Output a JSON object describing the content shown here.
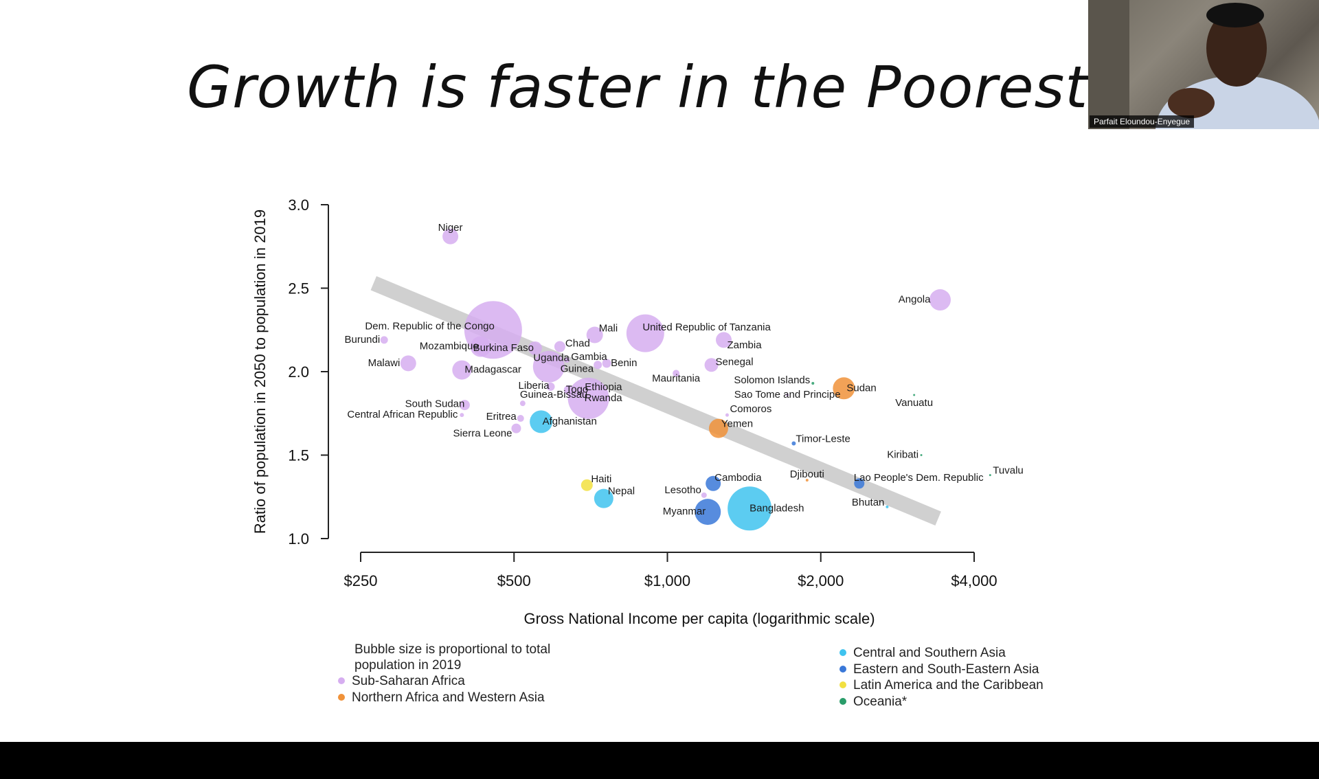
{
  "slide": {
    "title": "Growth is faster in the Poorest Nation",
    "presenter": "Parfait Eloundou-Enyegue"
  },
  "colors": {
    "background": "#ffffff",
    "trend": "#c8c8c8",
    "bottom_bar": "#000000"
  },
  "chart_data": {
    "type": "scatter",
    "xlabel": "Gross National Income per capita (logarithmic scale)",
    "ylabel": "Ratio of population in 2050 to population in 2019",
    "x_scale": "log2",
    "xlim": [
      250,
      4000
    ],
    "ylim": [
      1.0,
      3.0
    ],
    "x_ticks": [
      {
        "value": 250,
        "label": "$250"
      },
      {
        "value": 500,
        "label": "$500"
      },
      {
        "value": 1000,
        "label": "$1,000"
      },
      {
        "value": 2000,
        "label": "$2,000"
      },
      {
        "value": 4000,
        "label": "$4,000"
      }
    ],
    "y_ticks": [
      {
        "value": 1.0,
        "label": "1.0"
      },
      {
        "value": 1.5,
        "label": "1.5"
      },
      {
        "value": 2.0,
        "label": "2.0"
      },
      {
        "value": 2.5,
        "label": "2.5"
      },
      {
        "value": 3.0,
        "label": "3.0"
      }
    ],
    "trend_line": {
      "x": [
        265,
        3400
      ],
      "y": [
        2.53,
        1.12
      ]
    },
    "bubble_note": "Bubble size is proportional to total population in 2019",
    "legend": [
      {
        "name": "Sub-Saharan Africa",
        "key": "ssa",
        "color": "#d6aef0",
        "column": 0
      },
      {
        "name": "Northern Africa and Western Asia",
        "key": "nawa",
        "color": "#f0923a",
        "column": 0
      },
      {
        "name": "Central and Southern Asia",
        "key": "csa",
        "color": "#3fc3ef",
        "column": 1
      },
      {
        "name": "Eastern and South-Eastern Asia",
        "key": "esea",
        "color": "#3a78d8",
        "column": 1
      },
      {
        "name": "Latin America and the Caribbean",
        "key": "lac",
        "color": "#f2e040",
        "column": 1
      },
      {
        "name": "Oceania*",
        "key": "oce",
        "color": "#2a9d6a",
        "column": 1
      }
    ],
    "points": [
      {
        "name": "Niger",
        "x": 375,
        "y": 2.81,
        "size": 23,
        "region": "ssa",
        "anchor": "middle",
        "dx": 0,
        "dy": -8
      },
      {
        "name": "Angola",
        "x": 3430,
        "y": 2.43,
        "size": 31,
        "region": "ssa",
        "anchor": "end",
        "dx": -14,
        "dy": 4
      },
      {
        "name": "Dem. Republic of the Congo",
        "x": 455,
        "y": 2.25,
        "size": 84,
        "region": "ssa",
        "anchor": "end",
        "dx": 2,
        "dy": -1
      },
      {
        "name": "Burundi",
        "x": 278,
        "y": 2.19,
        "size": 11,
        "region": "ssa",
        "anchor": "end",
        "dx": -6,
        "dy": 4
      },
      {
        "name": "Mozambique",
        "x": 430,
        "y": 2.15,
        "size": 30,
        "region": "ssa",
        "anchor": "end",
        "dx": -3,
        "dy": 4
      },
      {
        "name": "Burkina Faso",
        "x": 550,
        "y": 2.14,
        "size": 20,
        "region": "ssa",
        "anchor": "end",
        "dx": -2,
        "dy": 4
      },
      {
        "name": "Chad",
        "x": 615,
        "y": 2.15,
        "size": 16,
        "region": "ssa",
        "anchor": "start",
        "dx": 8,
        "dy": 0
      },
      {
        "name": "Malawi",
        "x": 310,
        "y": 2.05,
        "size": 23,
        "region": "ssa",
        "anchor": "end",
        "dx": -12,
        "dy": 4
      },
      {
        "name": "Madagascar",
        "x": 395,
        "y": 2.01,
        "size": 28,
        "region": "ssa",
        "anchor": "start",
        "dx": 4,
        "dy": 4
      },
      {
        "name": "Uganda",
        "x": 585,
        "y": 2.03,
        "size": 46,
        "region": "ssa",
        "anchor": "end",
        "dx": 30,
        "dy": -8
      },
      {
        "name": "Gambia",
        "x": 635,
        "y": 2.07,
        "size": 8,
        "region": "ssa",
        "anchor": "start",
        "dx": 6,
        "dy": 0
      },
      {
        "name": "Guinea",
        "x": 730,
        "y": 2.04,
        "size": 12,
        "region": "ssa",
        "anchor": "end",
        "dx": -6,
        "dy": 10
      },
      {
        "name": "Benin",
        "x": 760,
        "y": 2.05,
        "size": 13,
        "region": "ssa",
        "anchor": "start",
        "dx": 6,
        "dy": 4
      },
      {
        "name": "Mali",
        "x": 720,
        "y": 2.22,
        "size": 24,
        "region": "ssa",
        "anchor": "start",
        "dx": 6,
        "dy": -5
      },
      {
        "name": "United Republic of Tanzania",
        "x": 905,
        "y": 2.23,
        "size": 55,
        "region": "ssa",
        "anchor": "start",
        "dx": -4,
        "dy": -4
      },
      {
        "name": "Zambia",
        "x": 1290,
        "y": 2.19,
        "size": 23,
        "region": "ssa",
        "anchor": "start",
        "dx": 5,
        "dy": 12
      },
      {
        "name": "Senegal",
        "x": 1220,
        "y": 2.04,
        "size": 20,
        "region": "ssa",
        "anchor": "start",
        "dx": 6,
        "dy": 0
      },
      {
        "name": "Mauritania",
        "x": 1040,
        "y": 1.99,
        "size": 10,
        "region": "ssa",
        "anchor": "middle",
        "dx": 0,
        "dy": 12
      },
      {
        "name": "Liberia",
        "x": 590,
        "y": 1.91,
        "size": 12,
        "region": "ssa",
        "anchor": "end",
        "dx": -2,
        "dy": 3
      },
      {
        "name": "Togo",
        "x": 640,
        "y": 1.89,
        "size": 14,
        "region": "ssa",
        "anchor": "start",
        "dx": -4,
        "dy": 4
      },
      {
        "name": "Ethiopia",
        "x": 680,
        "y": 1.88,
        "size": 6,
        "region": "ssa",
        "anchor": "start",
        "dx": 4,
        "dy": -2
      },
      {
        "name": "Rwanda",
        "x": 700,
        "y": 1.84,
        "size": 60,
        "region": "ssa",
        "anchor": "start",
        "dx": -6,
        "dy": 4
      },
      {
        "name": "South Sudan",
        "x": 400,
        "y": 1.8,
        "size": 15,
        "region": "ssa",
        "anchor": "end",
        "dx": 0,
        "dy": 3
      },
      {
        "name": "Guinea-Bissau",
        "x": 520,
        "y": 1.81,
        "size": 8,
        "region": "ssa",
        "anchor": "start",
        "dx": -4,
        "dy": -8
      },
      {
        "name": "Central African Republic",
        "x": 395,
        "y": 1.74,
        "size": 6,
        "region": "ssa",
        "anchor": "end",
        "dx": -6,
        "dy": 4
      },
      {
        "name": "Eritrea",
        "x": 515,
        "y": 1.72,
        "size": 10,
        "region": "ssa",
        "anchor": "end",
        "dx": -6,
        "dy": 2
      },
      {
        "name": "Sierra Leone",
        "x": 505,
        "y": 1.66,
        "size": 14,
        "region": "ssa",
        "anchor": "end",
        "dx": -6,
        "dy": 12
      },
      {
        "name": "Lesotho",
        "x": 1180,
        "y": 1.26,
        "size": 8,
        "region": "ssa",
        "anchor": "end",
        "dx": -4,
        "dy": -3
      },
      {
        "name": "Sao Tome and Principe",
        "x": 1720,
        "y": 1.86,
        "size": 4,
        "region": "ssa",
        "anchor": "middle",
        "dx": 0,
        "dy": 4
      },
      {
        "name": "Comoros",
        "x": 1310,
        "y": 1.74,
        "size": 5,
        "region": "ssa",
        "anchor": "start",
        "dx": 4,
        "dy": -4
      },
      {
        "name": "Djibouti",
        "x": 1880,
        "y": 1.35,
        "size": 4,
        "region": "nawa",
        "anchor": "middle",
        "dx": 0,
        "dy": -4
      },
      {
        "name": "Sudan",
        "x": 2220,
        "y": 1.9,
        "size": 32,
        "region": "nawa",
        "anchor": "start",
        "dx": 4,
        "dy": 4
      },
      {
        "name": "Yemen",
        "x": 1260,
        "y": 1.66,
        "size": 28,
        "region": "nawa",
        "anchor": "start",
        "dx": 4,
        "dy": -2
      },
      {
        "name": "Afghanistan",
        "x": 565,
        "y": 1.7,
        "size": 33,
        "region": "csa",
        "anchor": "start",
        "dx": 2,
        "dy": 4
      },
      {
        "name": "Nepal",
        "x": 750,
        "y": 1.24,
        "size": 28,
        "region": "csa",
        "anchor": "start",
        "dx": 6,
        "dy": -6
      },
      {
        "name": "Bangladesh",
        "x": 1450,
        "y": 1.18,
        "size": 64,
        "region": "csa",
        "anchor": "start",
        "dx": 0,
        "dy": 4
      },
      {
        "name": "Bhutan",
        "x": 2700,
        "y": 1.19,
        "size": 4,
        "region": "csa",
        "anchor": "end",
        "dx": -4,
        "dy": -2
      },
      {
        "name": "Myanmar",
        "x": 1200,
        "y": 1.16,
        "size": 38,
        "region": "esea",
        "anchor": "end",
        "dx": -3,
        "dy": 4
      },
      {
        "name": "Cambodia",
        "x": 1230,
        "y": 1.33,
        "size": 22,
        "region": "esea",
        "anchor": "start",
        "dx": 2,
        "dy": -4
      },
      {
        "name": "Lao People's Dem. Republic",
        "x": 2380,
        "y": 1.33,
        "size": 15,
        "region": "esea",
        "anchor": "start",
        "dx": -8,
        "dy": -4
      },
      {
        "name": "Timor-Leste",
        "x": 1770,
        "y": 1.57,
        "size": 6,
        "region": "esea",
        "anchor": "start",
        "dx": 3,
        "dy": -2
      },
      {
        "name": "Haiti",
        "x": 695,
        "y": 1.32,
        "size": 17,
        "region": "lac",
        "anchor": "start",
        "dx": 6,
        "dy": -4
      },
      {
        "name": "Solomon Islands",
        "x": 1930,
        "y": 1.93,
        "size": 4,
        "region": "oce",
        "anchor": "end",
        "dx": -4,
        "dy": 0
      },
      {
        "name": "Vanuatu",
        "x": 3050,
        "y": 1.86,
        "size": 3,
        "region": "oce",
        "anchor": "middle",
        "dx": 0,
        "dy": 16
      },
      {
        "name": "Kiribati",
        "x": 3150,
        "y": 1.5,
        "size": 3,
        "region": "oce",
        "anchor": "end",
        "dx": -4,
        "dy": 4
      },
      {
        "name": "Tuvalu",
        "x": 4300,
        "y": 1.38,
        "size": 3,
        "region": "oce",
        "anchor": "start",
        "dx": 4,
        "dy": -2
      }
    ]
  }
}
